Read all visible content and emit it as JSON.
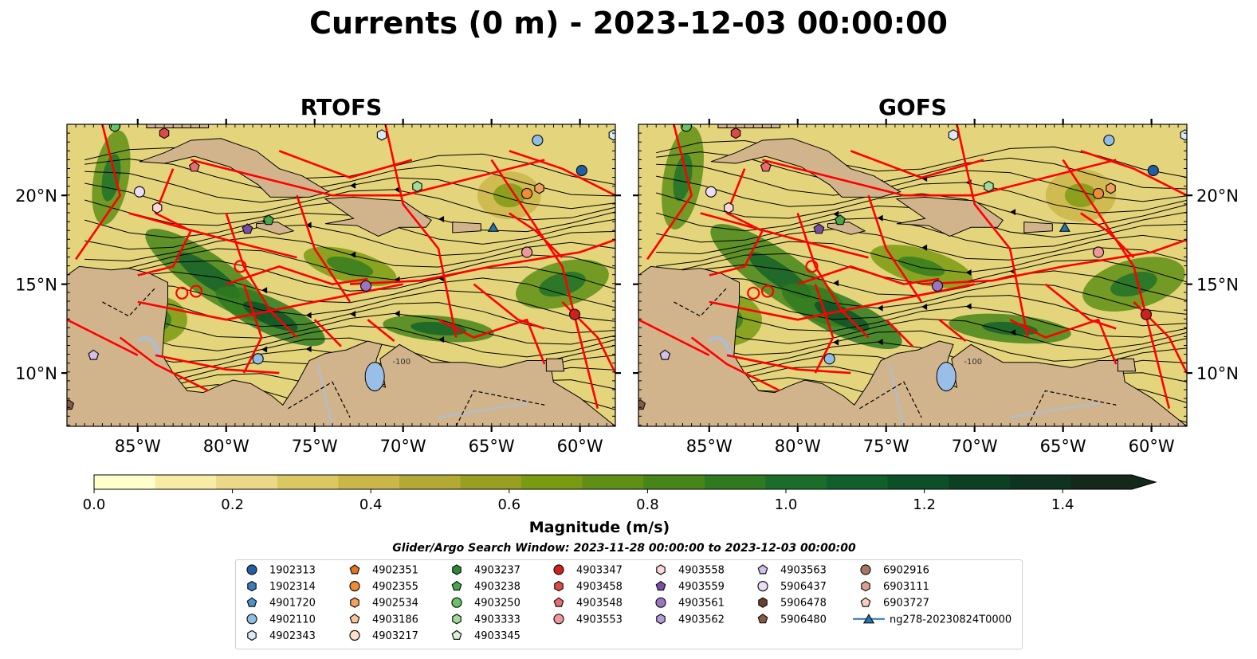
{
  "figure": {
    "title": "Currents (0 m) - 2023-12-03 00:00:00",
    "panels": [
      "RTOFS",
      "GOFS"
    ]
  },
  "map": {
    "lon_ticks": [
      "85°W",
      "80°W",
      "75°W",
      "70°W",
      "65°W",
      "60°W"
    ],
    "lat_ticks": [
      "20°N",
      "15°N",
      "10°N"
    ],
    "land_color": "#d2b48c",
    "boundary_color": "#ff0000",
    "lake_color": "#99bfe8",
    "contour_label": "-100"
  },
  "colorbar": {
    "ticks": [
      "0.0",
      "0.2",
      "0.4",
      "0.6",
      "0.8",
      "1.0",
      "1.2",
      "1.4"
    ],
    "label": "Magnitude (m/s)",
    "colors": [
      "#ffffcc",
      "#f7eba5",
      "#ecd987",
      "#dcc863",
      "#cbb64a",
      "#b3a934",
      "#97a020",
      "#7a9a12",
      "#5f8f15",
      "#478519",
      "#2f7a20",
      "#1b6e2a",
      "#115f2b",
      "#0c5027",
      "#0b4023",
      "#0e3320",
      "#14291a"
    ]
  },
  "search_window": "Glider/Argo Search Window: 2023-11-28 00:00:00 to 2023-12-03 00:00:00",
  "legend": {
    "columns": [
      [
        {
          "label": "1902313",
          "marker": "circle",
          "color": "#1f5fa8"
        },
        {
          "label": "1902314",
          "marker": "hexagon",
          "color": "#3a7dba"
        },
        {
          "label": "4901720",
          "marker": "pentagon",
          "color": "#4b93cc"
        },
        {
          "label": "4902110",
          "marker": "circle",
          "color": "#8fbde6"
        },
        {
          "label": "4902343",
          "marker": "hexagon",
          "color": "#dbeaf8"
        }
      ],
      [
        {
          "label": "4902351",
          "marker": "pentagon",
          "color": "#e8741a"
        },
        {
          "label": "4902355",
          "marker": "circle",
          "color": "#f08c33"
        },
        {
          "label": "4902534",
          "marker": "hexagon",
          "color": "#f5a05a"
        },
        {
          "label": "4903186",
          "marker": "pentagon",
          "color": "#f8c596"
        },
        {
          "label": "4903217",
          "marker": "circle",
          "color": "#fde0c6"
        }
      ],
      [
        {
          "label": "4903237",
          "marker": "hexagon",
          "color": "#2e8a32"
        },
        {
          "label": "4903238",
          "marker": "pentagon",
          "color": "#47a84a"
        },
        {
          "label": "4903250",
          "marker": "circle",
          "color": "#66c366"
        },
        {
          "label": "4903333",
          "marker": "hexagon",
          "color": "#a2dc9a"
        },
        {
          "label": "4903345",
          "marker": "pentagon",
          "color": "#d9f3d2"
        }
      ],
      [
        {
          "label": "4903347",
          "marker": "circle",
          "color": "#d0201d"
        },
        {
          "label": "4903458",
          "marker": "hexagon",
          "color": "#e04848"
        },
        {
          "label": "4903548",
          "marker": "pentagon",
          "color": "#ea6d6d"
        },
        {
          "label": "4903553",
          "marker": "circle",
          "color": "#f09898"
        }
      ],
      [
        {
          "label": "4903558",
          "marker": "hexagon",
          "color": "#fad6d6"
        },
        {
          "label": "4903559",
          "marker": "pentagon",
          "color": "#7a4ea8"
        },
        {
          "label": "4903561",
          "marker": "circle",
          "color": "#9a75c4"
        },
        {
          "label": "4903562",
          "marker": "hexagon",
          "color": "#b89bd9"
        }
      ],
      [
        {
          "label": "4903563",
          "marker": "pentagon",
          "color": "#d2c0ea"
        },
        {
          "label": "5906437",
          "marker": "circle",
          "color": "#ecdcf7"
        },
        {
          "label": "5906478",
          "marker": "hexagon",
          "color": "#6b3e2e"
        },
        {
          "label": "5906480",
          "marker": "pentagon",
          "color": "#8a5a48"
        }
      ],
      [
        {
          "label": "6902916",
          "marker": "circle",
          "color": "#a87560"
        },
        {
          "label": "6903111",
          "marker": "hexagon",
          "color": "#d9a28e"
        },
        {
          "label": "6903727",
          "marker": "pentagon",
          "color": "#f6cfc1"
        },
        {
          "label": "ng278-20230824T0000",
          "marker": "triangle-line",
          "color": "#1f77b4"
        }
      ]
    ]
  }
}
